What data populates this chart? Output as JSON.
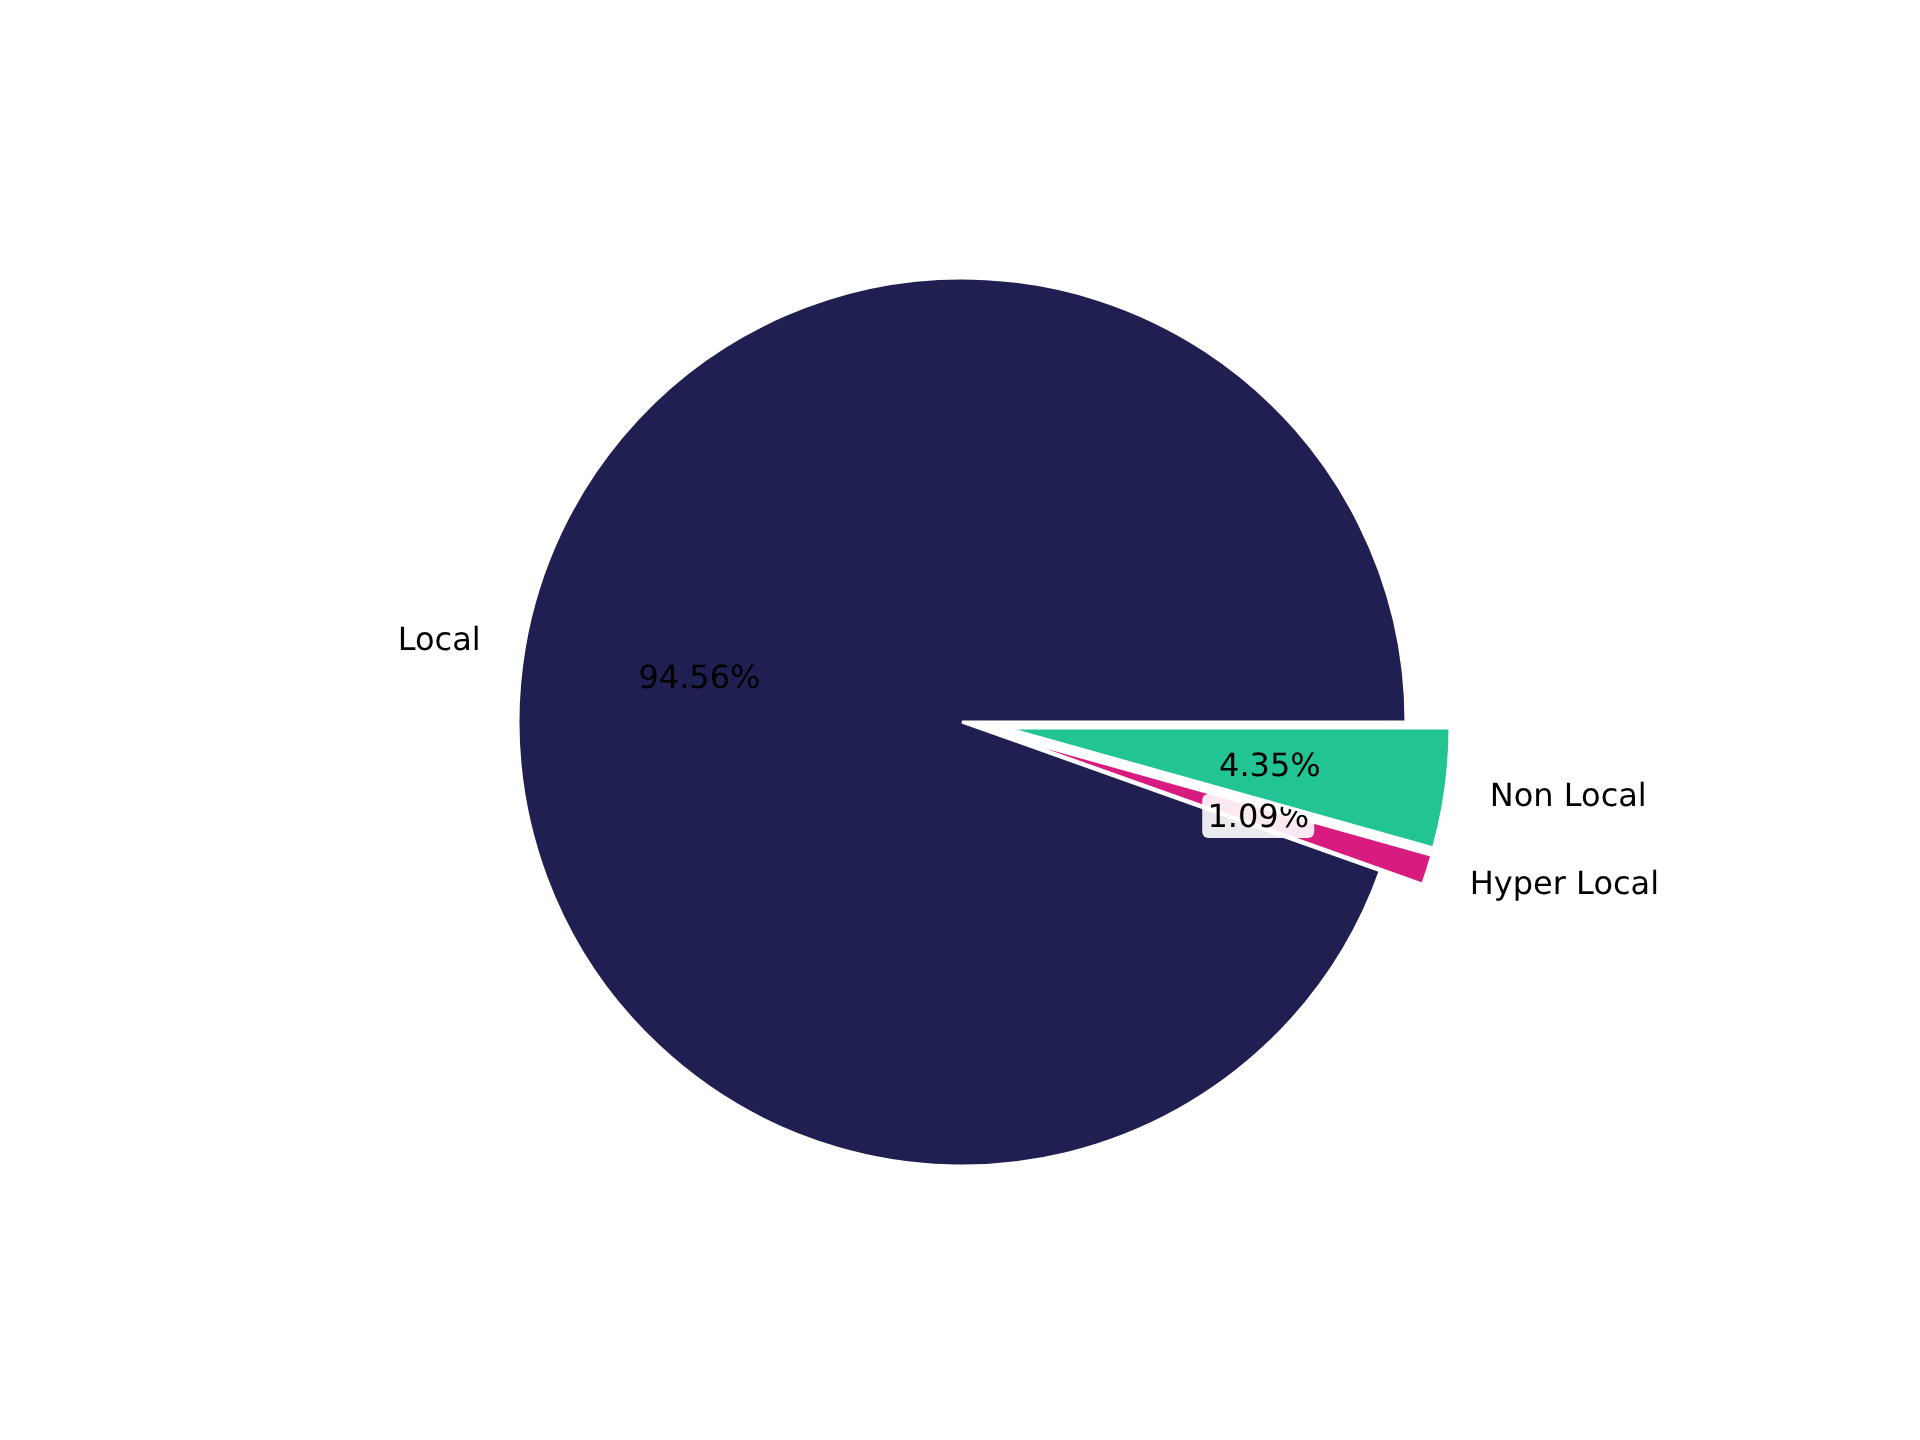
{
  "chart_data": {
    "type": "pie",
    "categories": [
      "Local",
      "Hyper Local",
      "Non Local"
    ],
    "values": [
      94.56,
      1.09,
      4.35
    ],
    "colors": [
      "#1f1f51",
      "#d81b7f",
      "#22c493"
    ],
    "value_labels": [
      "94.56%",
      "1.09%",
      "4.35%"
    ]
  }
}
